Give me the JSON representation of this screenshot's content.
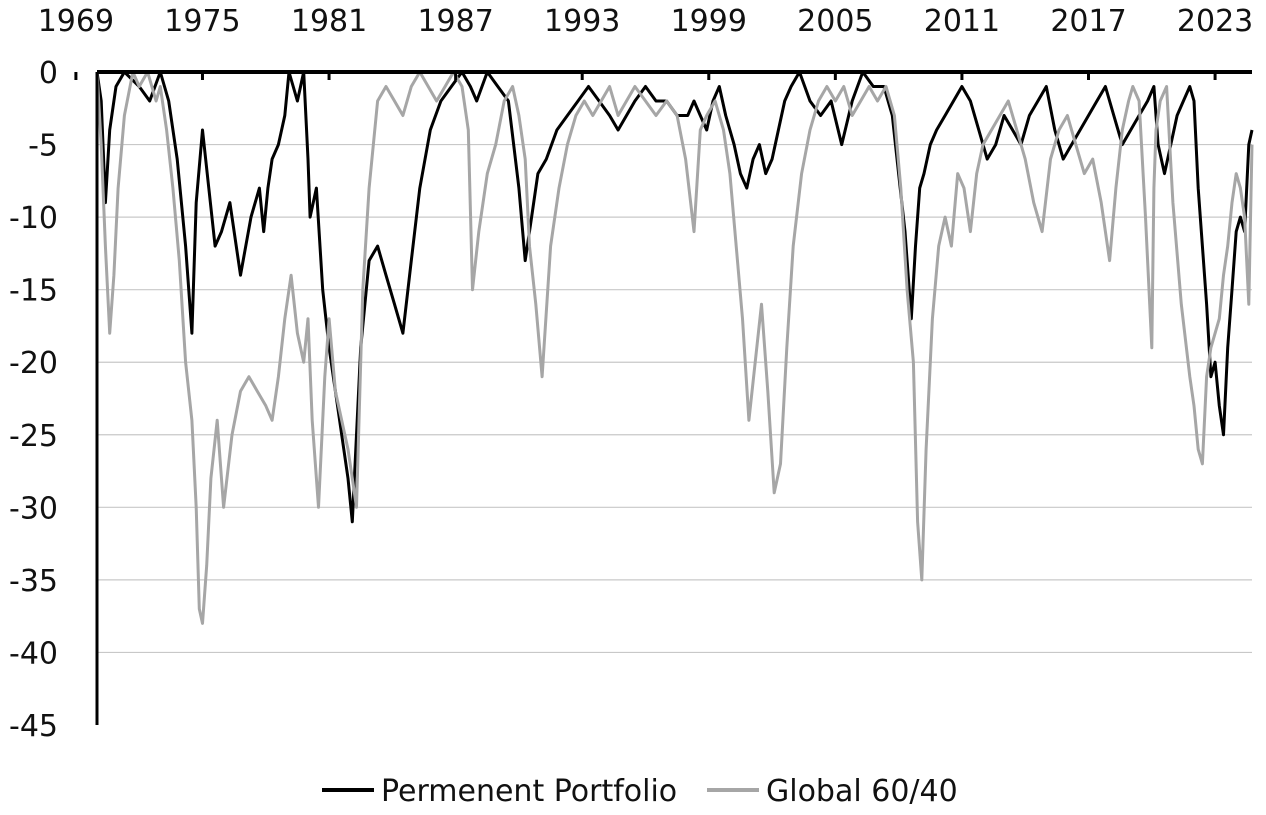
{
  "chart_data": {
    "type": "line",
    "title": "",
    "xlabel": "",
    "ylabel": "",
    "x_range": [
      1970.0,
      2024.75
    ],
    "ylim": [
      -45,
      0
    ],
    "x_ticks": [
      "1969",
      "1975",
      "1981",
      "1987",
      "1993",
      "1999",
      "2005",
      "2011",
      "2017",
      "2023"
    ],
    "y_ticks": [
      "0",
      "-5",
      "-10",
      "-15",
      "-20",
      "-25",
      "-30",
      "-35",
      "-40",
      "-45"
    ],
    "grid": true,
    "x_axis_position": "top",
    "legend_position": "bottom",
    "series": [
      {
        "name": "Permenent Portfolio",
        "color": "#000000",
        "x": [
          1970.0,
          1970.2,
          1970.4,
          1970.6,
          1970.9,
          1971.3,
          1972.0,
          1972.5,
          1973.0,
          1973.4,
          1973.8,
          1974.2,
          1974.5,
          1974.7,
          1975.0,
          1975.3,
          1975.6,
          1975.9,
          1976.3,
          1976.8,
          1977.3,
          1977.7,
          1977.9,
          1978.1,
          1978.3,
          1978.6,
          1978.9,
          1979.1,
          1979.3,
          1979.5,
          1979.8,
          1980.0,
          1980.1,
          1980.4,
          1980.7,
          1981.0,
          1981.3,
          1981.7,
          1981.9,
          1982.1,
          1982.5,
          1982.9,
          1983.3,
          1983.7,
          1984.1,
          1984.5,
          1984.9,
          1985.3,
          1985.8,
          1986.3,
          1986.8,
          1987.3,
          1987.7,
          1988.0,
          1988.5,
          1989.0,
          1989.5,
          1990.0,
          1990.3,
          1990.6,
          1990.9,
          1991.3,
          1991.8,
          1992.3,
          1992.8,
          1993.3,
          1993.8,
          1994.3,
          1994.7,
          1995.1,
          1995.5,
          1996.0,
          1996.5,
          1997.0,
          1997.5,
          1998.0,
          1998.3,
          1998.6,
          1998.9,
          1999.2,
          1999.5,
          1999.8,
          2000.2,
          2000.5,
          2000.8,
          2001.1,
          2001.4,
          2001.7,
          2002.0,
          2002.3,
          2002.6,
          2002.9,
          2003.3,
          2003.8,
          2004.3,
          2004.8,
          2005.3,
          2005.8,
          2006.3,
          2006.8,
          2007.3,
          2007.7,
          2008.0,
          2008.3,
          2008.6,
          2008.8,
          2009.0,
          2009.2,
          2009.5,
          2009.8,
          2010.2,
          2010.6,
          2011.0,
          2011.4,
          2011.8,
          2012.2,
          2012.6,
          2013.0,
          2013.4,
          2013.8,
          2014.2,
          2014.6,
          2015.0,
          2015.4,
          2015.8,
          2016.2,
          2016.6,
          2017.0,
          2017.4,
          2017.8,
          2018.2,
          2018.6,
          2019.0,
          2019.4,
          2019.8,
          2020.1,
          2020.3,
          2020.6,
          2020.9,
          2021.2,
          2021.5,
          2021.8,
          2022.0,
          2022.2,
          2022.4,
          2022.6,
          2022.8,
          2023.0,
          2023.2,
          2023.4,
          2023.6,
          2023.8,
          2024.0,
          2024.2,
          2024.4,
          2024.6,
          2024.75
        ],
        "y": [
          0,
          -2,
          -9,
          -4,
          -1,
          0,
          -1,
          -2,
          0,
          -2,
          -6,
          -12,
          -18,
          -9,
          -4,
          -8,
          -12,
          -11,
          -9,
          -14,
          -10,
          -8,
          -11,
          -8,
          -6,
          -5,
          -3,
          0,
          -1,
          -2,
          0,
          -6,
          -10,
          -8,
          -15,
          -19,
          -22,
          -26,
          -28,
          -31,
          -19,
          -13,
          -12,
          -14,
          -16,
          -18,
          -13,
          -8,
          -4,
          -2,
          -1,
          0,
          -1,
          -2,
          0,
          -1,
          -2,
          -8,
          -13,
          -10,
          -7,
          -6,
          -4,
          -3,
          -2,
          -1,
          -2,
          -3,
          -4,
          -3,
          -2,
          -1,
          -2,
          -2,
          -3,
          -3,
          -2,
          -3,
          -4,
          -2,
          -1,
          -3,
          -5,
          -7,
          -8,
          -6,
          -5,
          -7,
          -6,
          -4,
          -2,
          -1,
          0,
          -2,
          -3,
          -2,
          -5,
          -2,
          0,
          -1,
          -1,
          -3,
          -7,
          -11,
          -17,
          -12,
          -8,
          -7,
          -5,
          -4,
          -3,
          -2,
          -1,
          -2,
          -4,
          -6,
          -5,
          -3,
          -4,
          -5,
          -3,
          -2,
          -1,
          -4,
          -6,
          -5,
          -4,
          -3,
          -2,
          -1,
          -3,
          -5,
          -4,
          -3,
          -2,
          -1,
          -5,
          -7,
          -5,
          -3,
          -2,
          -1,
          -2,
          -8,
          -12,
          -16,
          -21,
          -20,
          -23,
          -25,
          -19,
          -15,
          -11,
          -10,
          -11,
          -5,
          -4
        ]
      },
      {
        "name": "Global 60/40",
        "color": "#a6a6a6",
        "x": [
          1970.0,
          1970.2,
          1970.4,
          1970.6,
          1970.8,
          1971.0,
          1971.3,
          1971.7,
          1972.0,
          1972.4,
          1972.8,
          1973.0,
          1973.3,
          1973.6,
          1973.9,
          1974.2,
          1974.5,
          1974.7,
          1974.85,
          1975.0,
          1975.2,
          1975.4,
          1975.7,
          1976.0,
          1976.4,
          1976.8,
          1977.2,
          1977.6,
          1978.0,
          1978.3,
          1978.6,
          1978.9,
          1979.2,
          1979.5,
          1979.8,
          1980.0,
          1980.2,
          1980.5,
          1980.8,
          1981.0,
          1981.3,
          1981.6,
          1981.9,
          1982.1,
          1982.3,
          1982.6,
          1982.9,
          1983.3,
          1983.7,
          1984.1,
          1984.5,
          1984.9,
          1985.3,
          1985.7,
          1986.1,
          1986.5,
          1986.9,
          1987.3,
          1987.6,
          1987.8,
          1988.1,
          1988.5,
          1988.9,
          1989.3,
          1989.7,
          1990.0,
          1990.3,
          1990.5,
          1990.8,
          1991.1,
          1991.5,
          1991.9,
          1992.3,
          1992.7,
          1993.1,
          1993.5,
          1993.9,
          1994.3,
          1994.7,
          1995.1,
          1995.5,
          1996.0,
          1996.5,
          1997.0,
          1997.5,
          1997.9,
          1998.3,
          1998.6,
          1998.9,
          1999.3,
          1999.7,
          2000.0,
          2000.3,
          2000.6,
          2000.9,
          2001.2,
          2001.5,
          2001.8,
          2002.1,
          2002.4,
          2002.7,
          2003.0,
          2003.4,
          2003.8,
          2004.2,
          2004.6,
          2005.0,
          2005.4,
          2005.8,
          2006.2,
          2006.6,
          2007.0,
          2007.4,
          2007.8,
          2008.1,
          2008.4,
          2008.7,
          2008.9,
          2009.1,
          2009.3,
          2009.6,
          2009.9,
          2010.2,
          2010.5,
          2010.8,
          2011.1,
          2011.4,
          2011.7,
          2012.0,
          2012.4,
          2012.8,
          2013.2,
          2013.6,
          2014.0,
          2014.4,
          2014.8,
          2015.2,
          2015.6,
          2016.0,
          2016.4,
          2016.8,
          2017.2,
          2017.6,
          2018.0,
          2018.3,
          2018.6,
          2018.9,
          2019.1,
          2019.4,
          2019.7,
          2020.0,
          2020.1,
          2020.2,
          2020.4,
          2020.7,
          2021.0,
          2021.4,
          2021.8,
          2022.0,
          2022.2,
          2022.4,
          2022.6,
          2022.8,
          2023.0,
          2023.2,
          2023.4,
          2023.6,
          2023.8,
          2024.0,
          2024.2,
          2024.4,
          2024.6,
          2024.75
        ],
        "y": [
          0,
          -5,
          -12,
          -18,
          -14,
          -8,
          -3,
          0,
          -1,
          0,
          -2,
          -1,
          -4,
          -8,
          -13,
          -20,
          -24,
          -30,
          -37,
          -38,
          -34,
          -28,
          -24,
          -30,
          -25,
          -22,
          -21,
          -22,
          -23,
          -24,
          -21,
          -17,
          -14,
          -18,
          -20,
          -17,
          -24,
          -30,
          -21,
          -17,
          -22,
          -24,
          -26,
          -28,
          -30,
          -15,
          -8,
          -2,
          -1,
          -2,
          -3,
          -1,
          0,
          -1,
          -2,
          -1,
          0,
          -1,
          -4,
          -15,
          -11,
          -7,
          -5,
          -2,
          -1,
          -3,
          -6,
          -12,
          -16,
          -21,
          -12,
          -8,
          -5,
          -3,
          -2,
          -3,
          -2,
          -1,
          -3,
          -2,
          -1,
          -2,
          -3,
          -2,
          -3,
          -6,
          -11,
          -4,
          -3,
          -2,
          -4,
          -7,
          -12,
          -17,
          -24,
          -20,
          -16,
          -22,
          -29,
          -27,
          -19,
          -12,
          -7,
          -4,
          -2,
          -1,
          -2,
          -1,
          -3,
          -2,
          -1,
          -2,
          -1,
          -3,
          -8,
          -15,
          -20,
          -31,
          -35,
          -26,
          -17,
          -12,
          -10,
          -12,
          -7,
          -8,
          -11,
          -7,
          -5,
          -4,
          -3,
          -2,
          -4,
          -6,
          -9,
          -11,
          -6,
          -4,
          -3,
          -5,
          -7,
          -6,
          -9,
          -13,
          -8,
          -4,
          -2,
          -1,
          -2,
          -10,
          -19,
          -8,
          -4,
          -2,
          -1,
          -9,
          -16,
          -21,
          -23,
          -26,
          -27,
          -21,
          -19,
          -18,
          -17,
          -14,
          -12,
          -9,
          -7,
          -8,
          -10,
          -16,
          -5
        ]
      }
    ]
  }
}
